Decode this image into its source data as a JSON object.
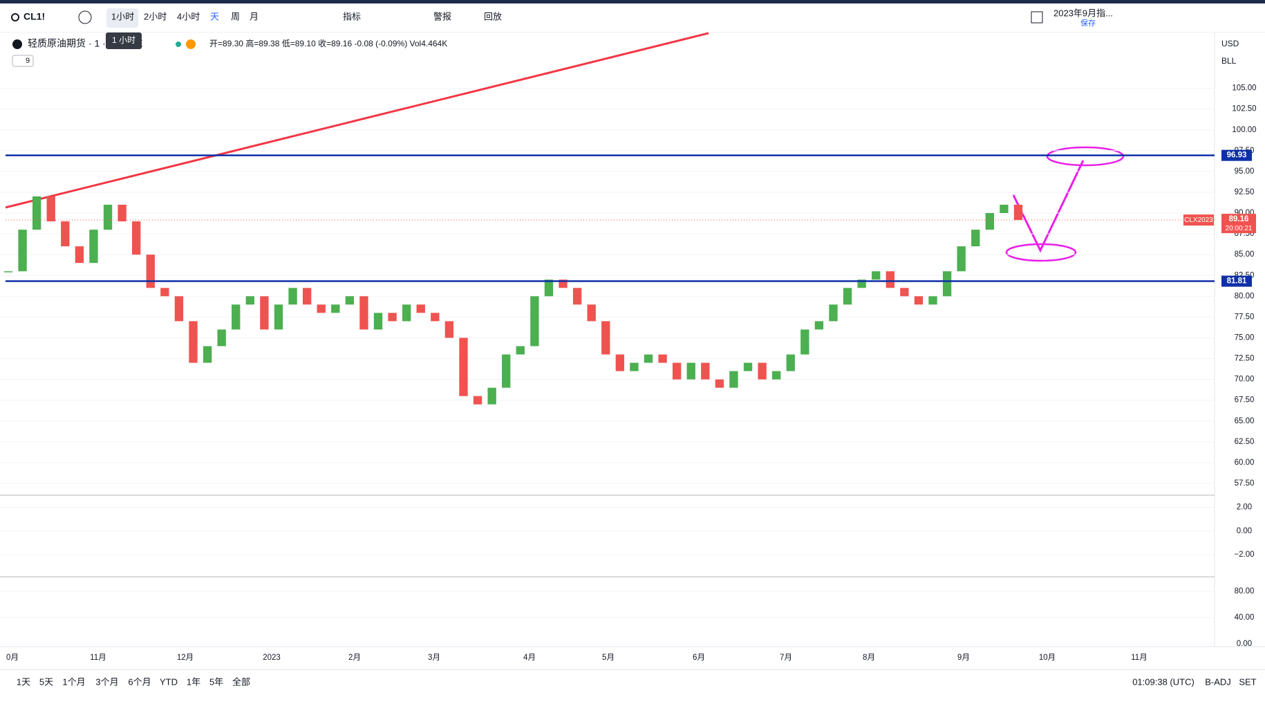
{
  "toolbar": {
    "symbol": "CL1!",
    "intervals": [
      "1小时",
      "2小时",
      "4小时",
      "天",
      "周",
      "月"
    ],
    "indicators": "指标",
    "alerts": "警报",
    "replay": "回放",
    "layout_name": "2023年9月指...",
    "save": "保存",
    "tooltip": "1 小时"
  },
  "legend": {
    "name": "轻质原油期货 · 1 · NYMEX",
    "ohlc": "开=89.30 高=89.38 低=89.10 收=89.16 -0.08 (-0.09%) Vol4.464K",
    "collapsed": "9"
  },
  "scale_menu": [
    "USD",
    "BLL"
  ],
  "chart_data": {
    "type": "candlestick",
    "values": [
      83,
      88,
      92,
      89,
      86,
      84,
      88,
      91,
      89,
      85,
      81,
      80,
      77,
      72,
      74,
      76,
      79,
      80,
      76,
      79,
      81,
      79,
      78,
      79,
      80,
      76,
      78,
      77,
      79,
      78,
      77,
      75,
      68,
      67,
      69,
      73,
      74,
      80,
      82,
      81,
      79,
      77,
      73,
      71,
      72,
      73,
      72,
      70,
      72,
      70,
      69,
      71,
      72,
      70,
      71,
      73,
      76,
      77,
      79,
      81,
      82,
      83,
      81,
      80,
      79,
      80,
      83,
      86,
      88,
      90,
      91,
      89.16
    ],
    "ylim": [
      56.25,
      111.7
    ],
    "yticks": [
      {
        "value": 57.5,
        "label": "57.50"
      },
      {
        "value": 60,
        "label": "60.00"
      },
      {
        "value": 62.5,
        "label": "62.50"
      },
      {
        "value": 65,
        "label": "65.00"
      },
      {
        "value": 67.5,
        "label": "67.50"
      },
      {
        "value": 70,
        "label": "70.00"
      },
      {
        "value": 72.5,
        "label": "72.50"
      },
      {
        "value": 75,
        "label": "75.00"
      },
      {
        "value": 77.5,
        "label": "77.50"
      },
      {
        "value": 80,
        "label": "80.00"
      },
      {
        "value": 82.5,
        "label": "82.50"
      },
      {
        "value": 85,
        "label": "85.00"
      },
      {
        "value": 87.5,
        "label": "87.50"
      },
      {
        "value": 90,
        "label": "90.00"
      },
      {
        "value": 92.5,
        "label": "92.50"
      },
      {
        "value": 95,
        "label": "95.00"
      },
      {
        "value": 97.5,
        "label": "97.50"
      },
      {
        "value": 100,
        "label": "100.00"
      },
      {
        "value": 102.5,
        "label": "102.50"
      },
      {
        "value": 105,
        "label": "105.00"
      }
    ],
    "levels": [
      {
        "value": 96.93,
        "label": "96.93"
      },
      {
        "value": 81.81,
        "label": "81.81"
      }
    ],
    "last": {
      "value": 89.16,
      "label": "89.16",
      "symbol": "CLX2023",
      "countdown": "20:00:21"
    },
    "xlabels": [
      "0月",
      "11月",
      "12月",
      "2023",
      "2月",
      "3月",
      "4月",
      "5月",
      "6月",
      "7月",
      "8月",
      "9月",
      "10月",
      "11月"
    ]
  },
  "osc1": {
    "ylim": [
      -3.76,
      2.91
    ],
    "yticks": [
      {
        "value": 2,
        "label": "2.00"
      },
      {
        "value": 0,
        "label": "0.00"
      },
      {
        "value": -2,
        "label": "−2.00"
      }
    ]
  },
  "osc2": {
    "ylim": [
      -2,
      99.7
    ],
    "yticks": [
      {
        "value": 80,
        "label": "80.00"
      },
      {
        "value": 40,
        "label": "40.00"
      },
      {
        "value": 0,
        "label": "0.00"
      }
    ]
  },
  "bottom": {
    "ranges": [
      "1天",
      "5天",
      "1个月",
      "3个月",
      "6个月",
      "YTD",
      "1年",
      "5年",
      "全部"
    ],
    "clock": "01:09:38 (UTC)",
    "adj": "B-ADJ",
    "set": "SET"
  }
}
